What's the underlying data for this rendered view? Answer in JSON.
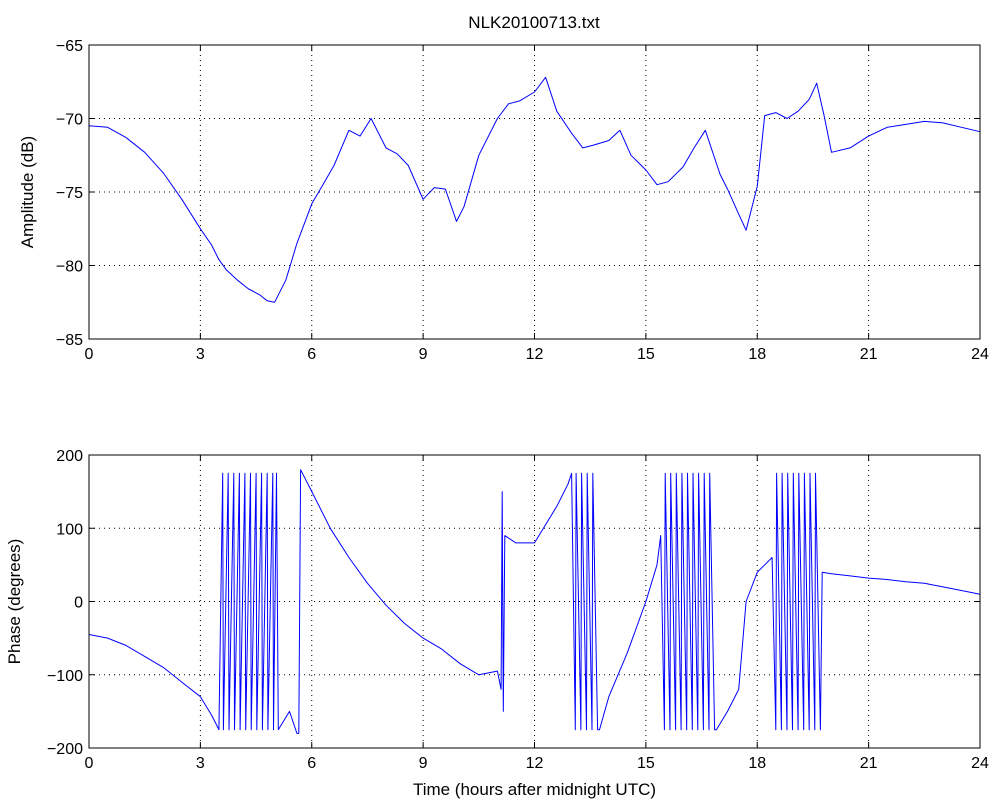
{
  "chart_data": [
    {
      "type": "line",
      "title": "NLK20100713.txt",
      "xlabel": "",
      "ylabel": "Amplitude (dB)",
      "xlim": [
        0,
        24
      ],
      "ylim": [
        -85,
        -65
      ],
      "xticks": [
        0,
        3,
        6,
        9,
        12,
        15,
        18,
        21,
        24
      ],
      "xtick_labels": [
        "0",
        "3",
        "6",
        "9",
        "12",
        "15",
        "18",
        "21",
        "24"
      ],
      "yticks": [
        -85,
        -80,
        -75,
        -70,
        -65
      ],
      "ytick_labels": [
        "−85",
        "−80",
        "−75",
        "−70",
        "−65"
      ],
      "grid": true,
      "line_color": "#0000ff",
      "x": [
        0,
        0.5,
        1,
        1.5,
        2,
        2.5,
        3,
        3.3,
        3.5,
        3.7,
        4,
        4.3,
        4.6,
        4.8,
        5,
        5.3,
        5.6,
        6,
        6.3,
        6.6,
        7,
        7.3,
        7.6,
        8,
        8.3,
        8.6,
        9,
        9.3,
        9.6,
        9.9,
        10.1,
        10.5,
        11,
        11.3,
        11.6,
        12,
        12.3,
        12.6,
        13,
        13.3,
        13.6,
        14,
        14.3,
        14.6,
        15,
        15.3,
        15.6,
        16,
        16.3,
        16.6,
        17,
        17.2,
        17.5,
        17.7,
        18,
        18.2,
        18.5,
        18.8,
        19.1,
        19.4,
        19.6,
        19.8,
        20,
        20.5,
        21,
        21.5,
        22,
        22.5,
        23,
        23.5,
        24
      ],
      "values": [
        -70.5,
        -70.6,
        -71.3,
        -72.3,
        -73.7,
        -75.5,
        -77.5,
        -78.6,
        -79.6,
        -80.3,
        -81.0,
        -81.6,
        -82.0,
        -82.4,
        -82.5,
        -81.0,
        -78.5,
        -75.8,
        -74.5,
        -73.2,
        -70.8,
        -71.2,
        -70.0,
        -72.0,
        -72.4,
        -73.2,
        -75.5,
        -74.7,
        -74.8,
        -77.0,
        -76.0,
        -72.5,
        -70.0,
        -69.0,
        -68.8,
        -68.2,
        -67.2,
        -69.5,
        -71.0,
        -72.0,
        -71.8,
        -71.5,
        -70.8,
        -72.5,
        -73.5,
        -74.5,
        -74.3,
        -73.3,
        -72.0,
        -70.8,
        -73.8,
        -74.8,
        -76.5,
        -77.6,
        -74.6,
        -69.8,
        -69.6,
        -70.0,
        -69.5,
        -68.7,
        -67.6,
        -69.8,
        -72.3,
        -72.0,
        -71.2,
        -70.6,
        -70.4,
        -70.2,
        -70.3,
        -70.6,
        -70.9
      ]
    },
    {
      "type": "line",
      "title": "",
      "xlabel": "Time (hours after midnight UTC)",
      "ylabel": "Phase (degrees)",
      "xlim": [
        0,
        24
      ],
      "ylim": [
        -200,
        200
      ],
      "xticks": [
        0,
        3,
        6,
        9,
        12,
        15,
        18,
        21,
        24
      ],
      "xtick_labels": [
        "0",
        "3",
        "6",
        "9",
        "12",
        "15",
        "18",
        "21",
        "24"
      ],
      "yticks": [
        -200,
        -100,
        0,
        100,
        200
      ],
      "ytick_labels": [
        "−200",
        "−100",
        "0",
        "100",
        "200"
      ],
      "grid": true,
      "line_color": "#0000ff",
      "x": [
        0,
        0.5,
        1,
        1.5,
        2,
        2.5,
        3,
        3.3,
        3.45,
        3.5,
        3.6,
        3.62,
        3.75,
        3.77,
        3.9,
        3.92,
        4.05,
        4.07,
        4.2,
        4.22,
        4.35,
        4.37,
        4.5,
        4.52,
        4.65,
        4.67,
        4.8,
        4.82,
        4.95,
        4.97,
        5.05,
        5.1,
        5.4,
        5.6,
        5.65,
        5.7,
        6,
        6.5,
        7,
        7.5,
        8,
        8.5,
        9,
        9.5,
        10,
        10.5,
        11,
        11.1,
        11.13,
        11.16,
        11.2,
        11.5,
        12,
        12.3,
        12.6,
        12.9,
        13.0,
        13.1,
        13.12,
        13.25,
        13.27,
        13.4,
        13.42,
        13.55,
        13.57,
        13.7,
        13.75,
        14,
        14.5,
        15,
        15.3,
        15.4,
        15.5,
        15.52,
        15.65,
        15.67,
        15.8,
        15.82,
        15.95,
        15.97,
        16.1,
        16.12,
        16.25,
        16.27,
        16.4,
        16.42,
        16.55,
        16.57,
        16.7,
        16.72,
        16.85,
        16.9,
        17.2,
        17.5,
        17.7,
        18,
        18.3,
        18.4,
        18.5,
        18.52,
        18.65,
        18.67,
        18.8,
        18.82,
        18.95,
        18.97,
        19.1,
        19.12,
        19.25,
        19.27,
        19.4,
        19.42,
        19.55,
        19.57,
        19.7,
        19.75,
        20,
        20.5,
        21,
        21.5,
        22,
        22.5,
        23,
        23.5,
        24
      ],
      "values": [
        -45,
        -50,
        -60,
        -75,
        -90,
        -110,
        -130,
        -155,
        -170,
        -175,
        175,
        -175,
        175,
        -175,
        175,
        -175,
        175,
        -175,
        175,
        -175,
        175,
        -175,
        175,
        -175,
        175,
        -175,
        175,
        -175,
        175,
        -175,
        175,
        -175,
        -150,
        -180,
        -180,
        180,
        150,
        100,
        60,
        25,
        -5,
        -30,
        -50,
        -65,
        -85,
        -100,
        -95,
        -120,
        150,
        -150,
        90,
        80,
        80,
        105,
        130,
        160,
        175,
        -175,
        175,
        -175,
        175,
        -175,
        175,
        -175,
        175,
        -175,
        -175,
        -130,
        -70,
        0,
        50,
        90,
        -175,
        175,
        -175,
        175,
        -175,
        175,
        -175,
        175,
        -175,
        175,
        -175,
        175,
        -175,
        175,
        -175,
        175,
        -175,
        175,
        -175,
        -175,
        -150,
        -120,
        0,
        40,
        55,
        60,
        -175,
        175,
        -175,
        175,
        -175,
        175,
        -175,
        175,
        -175,
        175,
        -175,
        175,
        -175,
        175,
        -175,
        175,
        -175,
        40,
        38,
        35,
        32,
        30,
        27,
        25,
        20,
        15,
        10
      ]
    }
  ]
}
